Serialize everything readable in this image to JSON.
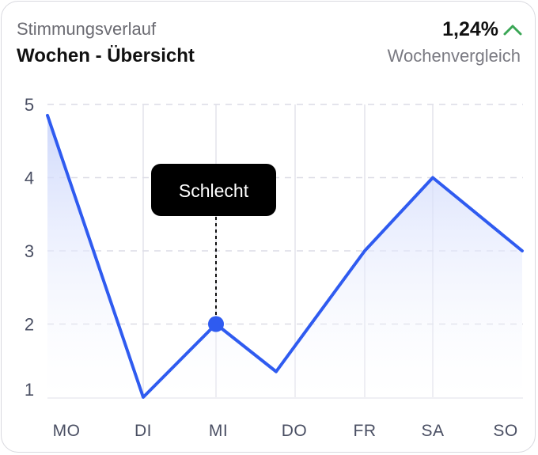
{
  "header": {
    "subtitle": "Stimmungsverlauf",
    "title": "Wochen - Übersicht",
    "change": "1,24%",
    "change_icon": "chevron-up-icon",
    "change_color": "#3aa655",
    "comparison": "Wochenvergleich"
  },
  "tooltip": {
    "label": "Schlecht",
    "category": "MI"
  },
  "colors": {
    "line": "#2f5bf0",
    "fill_top": "#c9d4fb",
    "grid": "#dcdce6",
    "tooltip_bg": "#000000"
  },
  "chart_data": {
    "type": "area",
    "title": "",
    "xlabel": "",
    "ylabel": "",
    "categories": [
      "MO",
      "DI",
      "MI",
      "DO",
      "FR",
      "SA",
      "SO"
    ],
    "values": [
      4.85,
      1.0,
      2.0,
      1.35,
      3.0,
      4.0,
      3.0
    ],
    "ylim": [
      1,
      5
    ],
    "yticks": [
      "1",
      "2",
      "3",
      "4",
      "5"
    ],
    "grid": true
  }
}
